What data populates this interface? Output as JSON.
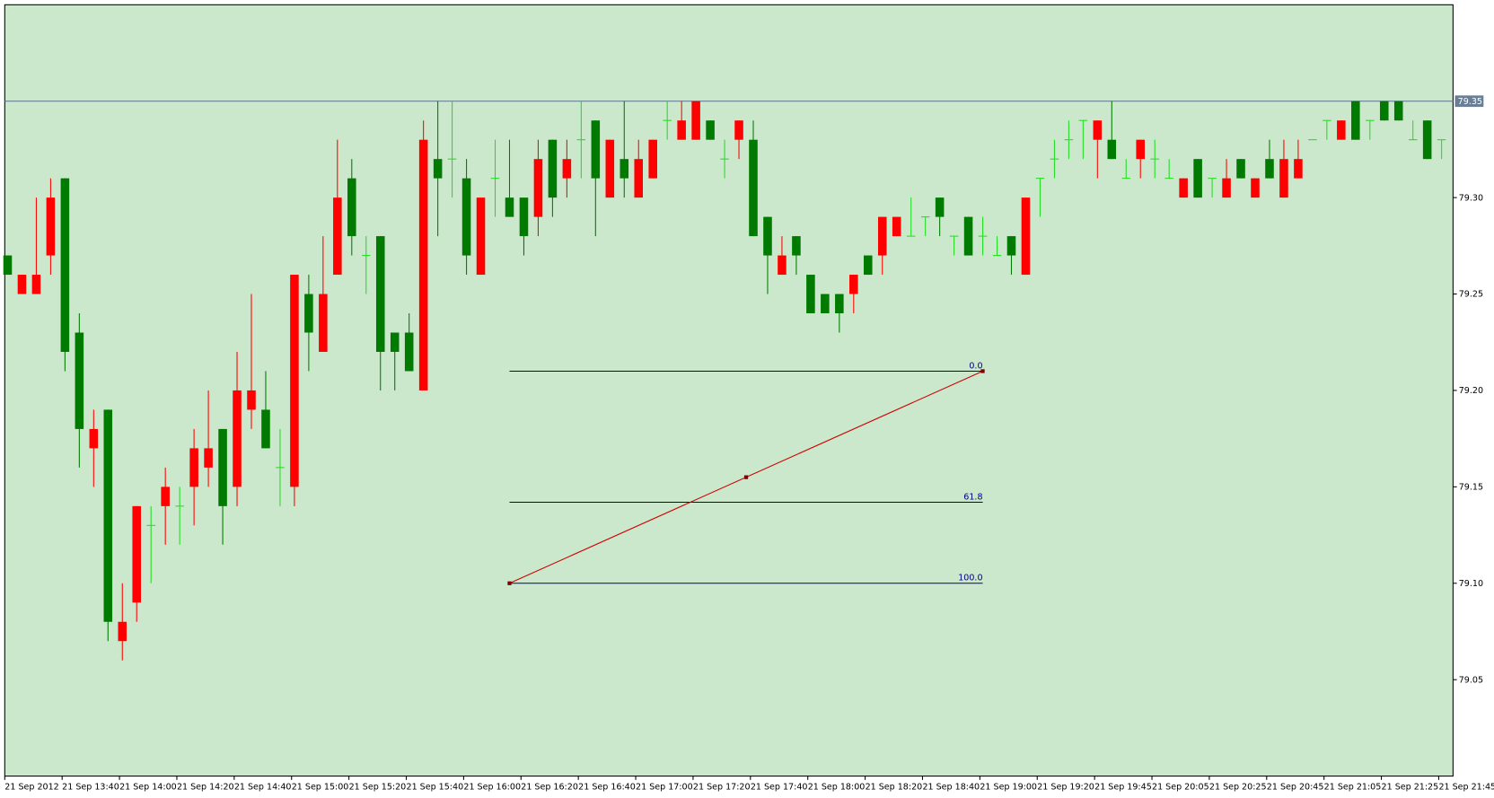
{
  "chart_data": {
    "type": "candlestick",
    "categories": [
      "21 Sep 2012",
      null,
      null,
      null,
      "21 Sep 13:40",
      null,
      null,
      null,
      "21 Sep 14:00",
      null,
      null,
      null,
      "21 Sep 14:20",
      null,
      null,
      null,
      "21 Sep 14:40",
      null,
      null,
      null,
      "21 Sep 15:00",
      null,
      null,
      null,
      "21 Sep 15:20",
      null,
      null,
      null,
      "21 Sep 15:40",
      null,
      null,
      null,
      "21 Sep 16:00",
      null,
      null,
      null,
      "21 Sep 16:20",
      null,
      null,
      null,
      "21 Sep 16:40",
      null,
      null,
      null,
      "21 Sep 17:00",
      null,
      null,
      null,
      "21 Sep 17:20",
      null,
      null,
      null,
      "21 Sep 17:40",
      null,
      null,
      null,
      "21 Sep 18:00",
      null,
      null,
      null,
      "21 Sep 18:20",
      null,
      null,
      null,
      "21 Sep 18:40",
      null,
      null,
      null,
      "21 Sep 19:00",
      null,
      null,
      null,
      "21 Sep 19:20",
      null,
      null,
      null,
      "21 Sep 19:45",
      null,
      null,
      null,
      "21 Sep 20:05",
      null,
      null,
      null,
      "21 Sep 20:25",
      null,
      null,
      null,
      "21 Sep 20:45",
      null,
      null,
      null,
      "21 Sep 21:05",
      null,
      null,
      null,
      "21 Sep 21:25",
      null,
      null,
      null,
      "21 Sep 21:45"
    ],
    "open": [
      79.27,
      79.25,
      79.25,
      79.27,
      79.31,
      79.23,
      79.17,
      79.19,
      79.07,
      79.09,
      79.13,
      79.14,
      79.14,
      79.15,
      79.16,
      79.18,
      79.15,
      79.19,
      79.19,
      79.16,
      79.15,
      79.25,
      79.22,
      79.26,
      79.31,
      79.27,
      79.28,
      79.23,
      79.23,
      79.2,
      79.32,
      79.32,
      79.31,
      79.26,
      79.31,
      79.3,
      79.3,
      79.29,
      79.33,
      79.31,
      79.33,
      79.34,
      79.3,
      79.32,
      79.3,
      79.31,
      79.34,
      79.33,
      79.33,
      79.34,
      79.32,
      79.33,
      79.33,
      79.29,
      79.26,
      79.28,
      79.26,
      79.25,
      79.25,
      79.25,
      79.27,
      79.27,
      79.28,
      79.28,
      79.29,
      79.3,
      79.28,
      79.29,
      79.28,
      79.27,
      79.28,
      79.26,
      79.31,
      79.32,
      79.33,
      79.34,
      79.33,
      79.33,
      79.31,
      79.32,
      79.32,
      79.31,
      79.3,
      79.32,
      79.31,
      79.3,
      79.32,
      79.3,
      79.32,
      79.3,
      79.31,
      79.33,
      79.34,
      79.33,
      79.35,
      79.34,
      79.35,
      79.35,
      79.33,
      79.34,
      79.33
    ],
    "high": [
      79.27,
      79.26,
      79.3,
      79.31,
      79.31,
      79.24,
      79.19,
      79.19,
      79.1,
      79.14,
      79.14,
      79.16,
      79.15,
      79.18,
      79.2,
      79.18,
      79.22,
      79.25,
      79.21,
      79.18,
      79.26,
      79.26,
      79.28,
      79.33,
      79.32,
      79.28,
      79.28,
      79.23,
      79.24,
      79.34,
      79.35,
      79.35,
      79.32,
      79.3,
      79.33,
      79.33,
      79.3,
      79.33,
      79.33,
      79.33,
      79.35,
      79.34,
      79.33,
      79.35,
      79.33,
      79.33,
      79.35,
      79.35,
      79.35,
      79.34,
      79.33,
      79.34,
      79.34,
      79.29,
      79.28,
      79.28,
      79.26,
      79.25,
      79.25,
      79.26,
      79.27,
      79.29,
      79.29,
      79.3,
      79.29,
      79.3,
      79.28,
      79.29,
      79.29,
      79.28,
      79.28,
      79.3,
      79.31,
      79.33,
      79.34,
      79.34,
      79.34,
      79.35,
      79.32,
      79.33,
      79.33,
      79.32,
      79.31,
      79.32,
      79.31,
      79.32,
      79.32,
      79.31,
      79.33,
      79.33,
      79.33,
      79.33,
      79.34,
      79.34,
      79.35,
      79.34,
      79.35,
      79.35,
      79.34,
      79.34,
      79.33
    ],
    "low": [
      79.26,
      79.25,
      79.25,
      79.26,
      79.21,
      79.16,
      79.15,
      79.07,
      79.06,
      79.08,
      79.1,
      79.12,
      79.12,
      79.13,
      79.15,
      79.12,
      79.14,
      79.18,
      79.17,
      79.14,
      79.14,
      79.21,
      79.22,
      79.26,
      79.27,
      79.25,
      79.2,
      79.2,
      79.21,
      79.2,
      79.28,
      79.3,
      79.26,
      79.26,
      79.29,
      79.29,
      79.27,
      79.28,
      79.29,
      79.3,
      79.31,
      79.28,
      79.3,
      79.3,
      79.3,
      79.31,
      79.33,
      79.33,
      79.33,
      79.33,
      79.31,
      79.32,
      79.28,
      79.25,
      79.26,
      79.26,
      79.24,
      79.24,
      79.23,
      79.24,
      79.26,
      79.26,
      79.28,
      79.28,
      79.28,
      79.28,
      79.27,
      79.27,
      79.27,
      79.27,
      79.26,
      79.26,
      79.29,
      79.31,
      79.32,
      79.32,
      79.31,
      79.32,
      79.31,
      79.31,
      79.31,
      79.31,
      79.3,
      79.3,
      79.3,
      79.3,
      79.31,
      79.3,
      79.31,
      79.3,
      79.31,
      79.33,
      79.33,
      79.33,
      79.33,
      79.33,
      79.34,
      79.34,
      79.33,
      79.32,
      79.32
    ],
    "close": [
      79.26,
      79.26,
      79.26,
      79.3,
      79.22,
      79.18,
      79.18,
      79.08,
      79.08,
      79.14,
      79.13,
      79.15,
      79.14,
      79.17,
      79.17,
      79.14,
      79.2,
      79.2,
      79.17,
      79.16,
      79.26,
      79.23,
      79.25,
      79.3,
      79.28,
      79.27,
      79.22,
      79.22,
      79.21,
      79.33,
      79.31,
      79.32,
      79.27,
      79.3,
      79.31,
      79.29,
      79.28,
      79.32,
      79.3,
      79.32,
      79.33,
      79.31,
      79.33,
      79.31,
      79.32,
      79.33,
      79.34,
      79.34,
      79.35,
      79.33,
      79.32,
      79.34,
      79.28,
      79.27,
      79.27,
      79.27,
      79.24,
      79.24,
      79.24,
      79.26,
      79.26,
      79.29,
      79.29,
      79.28,
      79.29,
      79.29,
      79.28,
      79.27,
      79.28,
      79.27,
      79.27,
      79.3,
      79.31,
      79.32,
      79.33,
      79.34,
      79.34,
      79.32,
      79.31,
      79.33,
      79.32,
      79.31,
      79.31,
      79.3,
      79.31,
      79.31,
      79.31,
      79.31,
      79.31,
      79.32,
      79.32,
      79.33,
      79.34,
      79.34,
      79.33,
      79.34,
      79.34,
      79.34,
      79.33,
      79.32,
      79.33
    ],
    "up_color": "#ff0000",
    "down_color": "#007a00",
    "doji_color": "#22dd22",
    "background": "#cce8cc",
    "ylim": [
      79.0,
      79.4
    ],
    "yticks": [
      {
        "value": 79.05,
        "label": "79.05"
      },
      {
        "value": 79.1,
        "label": "79.10"
      },
      {
        "value": 79.15,
        "label": "79.15"
      },
      {
        "value": 79.2,
        "label": "79.20"
      },
      {
        "value": 79.25,
        "label": "79.25"
      },
      {
        "value": 79.3,
        "label": "79.30"
      }
    ],
    "bid_line": 79.35,
    "fibonacci": {
      "start": {
        "index": 35,
        "price": 79.1
      },
      "end": {
        "index": 68,
        "price": 79.21
      },
      "line_color": "#cc0000",
      "level_color": "#000080",
      "levels": [
        {
          "value": 0,
          "label": "0.0"
        },
        61.8,
        {
          "value": 100,
          "label": "100.0"
        }
      ]
    }
  }
}
